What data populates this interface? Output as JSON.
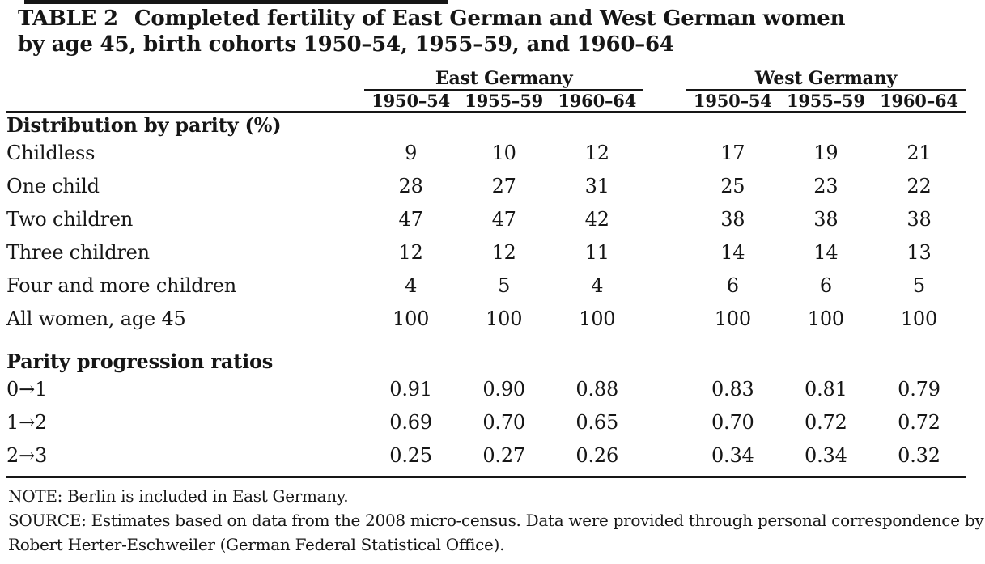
{
  "title": {
    "tag": "TABLE 2",
    "line1": "Completed fertility of East German and West German women",
    "line2": "by age 45, birth cohorts 1950–54, 1955–59, and 1960–64"
  },
  "table": {
    "groups": {
      "east": "East Germany",
      "west": "West Germany"
    },
    "cohorts": [
      "1950–54",
      "1955–59",
      "1960–64"
    ],
    "sections": [
      {
        "header": "Distribution by parity (%)",
        "rows": [
          {
            "label": "Childless",
            "east": [
              "9",
              "10",
              "12"
            ],
            "west": [
              "17",
              "19",
              "21"
            ]
          },
          {
            "label": "One child",
            "east": [
              "28",
              "27",
              "31"
            ],
            "west": [
              "25",
              "23",
              "22"
            ]
          },
          {
            "label": "Two children",
            "east": [
              "47",
              "47",
              "42"
            ],
            "west": [
              "38",
              "38",
              "38"
            ]
          },
          {
            "label": "Three children",
            "east": [
              "12",
              "12",
              "11"
            ],
            "west": [
              "14",
              "14",
              "13"
            ]
          },
          {
            "label": "Four and more children",
            "east": [
              "4",
              "5",
              "4"
            ],
            "west": [
              "6",
              "6",
              "5"
            ]
          },
          {
            "label": "All women, age 45",
            "east": [
              "100",
              "100",
              "100"
            ],
            "west": [
              "100",
              "100",
              "100"
            ]
          }
        ]
      },
      {
        "header": "Parity progression ratios",
        "rows": [
          {
            "label": "0→1",
            "east": [
              "0.91",
              "0.90",
              "0.88"
            ],
            "west": [
              "0.83",
              "0.81",
              "0.79"
            ]
          },
          {
            "label": "1→2",
            "east": [
              "0.69",
              "0.70",
              "0.65"
            ],
            "west": [
              "0.70",
              "0.72",
              "0.72"
            ]
          },
          {
            "label": "2→3",
            "east": [
              "0.25",
              "0.27",
              "0.26"
            ],
            "west": [
              "0.34",
              "0.34",
              "0.32"
            ]
          }
        ]
      }
    ]
  },
  "notes": {
    "note": "NOTE: Berlin is included in East Germany.",
    "source_line1": "SOURCE: Estimates based on data from the 2008 micro-census. Data were provided through personal correspondence by",
    "source_line2": "Robert Herter-Eschweiler (German Federal Statistical Office)."
  }
}
